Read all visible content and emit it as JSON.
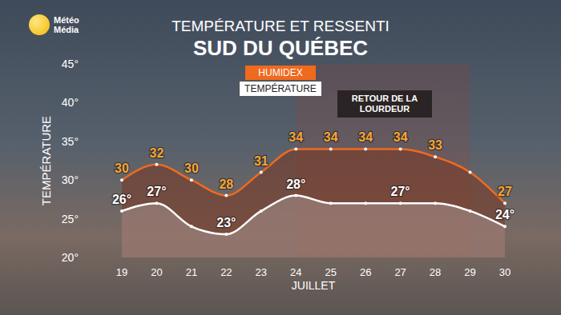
{
  "chart_data": {
    "type": "line",
    "title": "TEMPÉRATURE ET RESSENTI",
    "subtitle": "SUD DU QUÉBEC",
    "logo": [
      "Météo",
      "Média"
    ],
    "x_label": "JUILLET",
    "y_label": "TEMPÉRATURE",
    "categories": [
      "19",
      "20",
      "21",
      "22",
      "23",
      "24",
      "25",
      "26",
      "27",
      "28",
      "29",
      "30"
    ],
    "series": [
      {
        "name": "HUMIDEX",
        "color": "#f06a1e",
        "values": [
          30,
          32,
          30,
          28,
          31,
          34,
          34,
          34,
          34,
          33,
          31,
          27
        ],
        "value_labels": [
          "30",
          "32",
          "30",
          "28",
          "31",
          "34",
          "34",
          "34",
          "34",
          "33",
          null,
          "27"
        ]
      },
      {
        "name": "TEMPÉRATURE",
        "color": "#ffffff",
        "values": [
          26,
          27,
          24,
          23,
          26,
          28,
          27,
          27,
          27,
          27,
          26,
          24
        ],
        "value_labels": [
          "26°",
          "27°",
          null,
          "23°",
          null,
          "28°",
          null,
          null,
          "27°",
          null,
          null,
          "24°"
        ]
      }
    ],
    "ylim": [
      20,
      45
    ],
    "yticks": [
      {
        "value": 20,
        "label": "20°"
      },
      {
        "value": 25,
        "label": "25°"
      },
      {
        "value": 30,
        "label": "30°"
      },
      {
        "value": 35,
        "label": "35°"
      },
      {
        "value": 40,
        "label": "40°"
      },
      {
        "value": 45,
        "label": "45°"
      }
    ],
    "grid": false,
    "legend": "top",
    "data_labels": true,
    "annotation": {
      "text": "RETOUR DE LA LOURDEUR",
      "x_start": "24",
      "x_end": "29"
    }
  }
}
